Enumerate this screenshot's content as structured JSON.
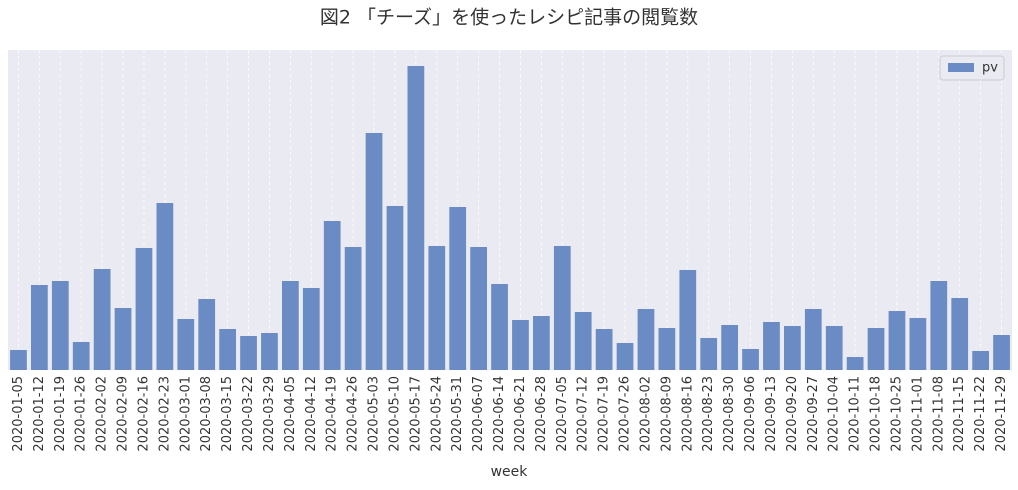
{
  "chart_data": {
    "type": "bar",
    "title": "図2 「チーズ」を使ったレシピ記事の閲覧数",
    "xlabel": "week",
    "categories": [
      "2020-01-05",
      "2020-01-12",
      "2020-01-19",
      "2020-01-26",
      "2020-02-02",
      "2020-02-09",
      "2020-02-16",
      "2020-02-23",
      "2020-03-01",
      "2020-03-08",
      "2020-03-15",
      "2020-03-22",
      "2020-03-29",
      "2020-04-05",
      "2020-04-12",
      "2020-04-19",
      "2020-04-26",
      "2020-05-03",
      "2020-05-10",
      "2020-05-17",
      "2020-05-24",
      "2020-05-31",
      "2020-06-07",
      "2020-06-14",
      "2020-06-21",
      "2020-06-28",
      "2020-07-05",
      "2020-07-12",
      "2020-07-19",
      "2020-07-26",
      "2020-08-02",
      "2020-08-09",
      "2020-08-16",
      "2020-08-23",
      "2020-08-30",
      "2020-09-06",
      "2020-09-13",
      "2020-09-20",
      "2020-09-27",
      "2020-10-04",
      "2020-10-11",
      "2020-10-18",
      "2020-10-25",
      "2020-11-01",
      "2020-11-08",
      "2020-11-15",
      "2020-11-22",
      "2020-11-29"
    ],
    "series": [
      {
        "name": "pv",
        "color": "#6a8bc3",
        "values": [
          20,
          85,
          89,
          28,
          101,
          62,
          122,
          167,
          51,
          71,
          41,
          34,
          37,
          89,
          82,
          149,
          123,
          237,
          164,
          304,
          124,
          163,
          123,
          86,
          50,
          54,
          124,
          58,
          41,
          27,
          61,
          42,
          100,
          32,
          45,
          21,
          48,
          44,
          61,
          44,
          13,
          42,
          59,
          52,
          89,
          72,
          19,
          35
        ]
      }
    ],
    "ylim": [
      0,
      320
    ],
    "grid": true,
    "legend": "upper right"
  }
}
